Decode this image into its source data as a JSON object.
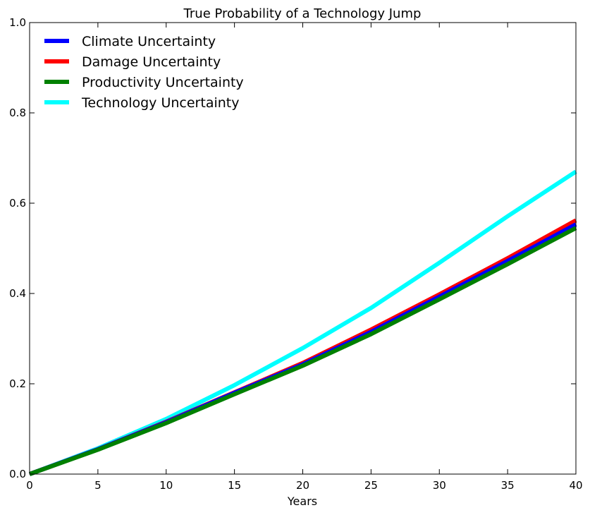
{
  "chart_data": {
    "type": "line",
    "title": "True Probability of a Technology Jump",
    "xlabel": "Years",
    "ylabel": "",
    "xlim": [
      0,
      40
    ],
    "ylim": [
      0,
      1.0
    ],
    "xticks": [
      0,
      5,
      10,
      15,
      20,
      25,
      30,
      35,
      40
    ],
    "xtick_labels": [
      "0",
      "5",
      "10",
      "15",
      "20",
      "25",
      "30",
      "35",
      "40"
    ],
    "yticks": [
      0,
      0.2,
      0.4,
      0.6,
      0.8,
      1.0
    ],
    "ytick_labels": [
      "0.0",
      "0.2",
      "0.4",
      "0.6",
      "0.8",
      "1.0"
    ],
    "grid": false,
    "legend_position": "top-left",
    "x": [
      0,
      5,
      10,
      15,
      20,
      25,
      30,
      35,
      40
    ],
    "series": [
      {
        "name": "Climate Uncertainty",
        "color": "#0000ff",
        "values": [
          0,
          0.055,
          0.115,
          0.18,
          0.243,
          0.315,
          0.393,
          0.472,
          0.553
        ]
      },
      {
        "name": "Damage Uncertainty",
        "color": "#ff0000",
        "values": [
          0,
          0.055,
          0.116,
          0.181,
          0.246,
          0.32,
          0.398,
          0.478,
          0.562
        ]
      },
      {
        "name": "Productivity Uncertainty",
        "color": "#008000",
        "values": [
          0,
          0.054,
          0.113,
          0.177,
          0.24,
          0.31,
          0.387,
          0.465,
          0.545
        ]
      },
      {
        "name": "Technology Uncertainty",
        "color": "#00ffff",
        "values": [
          0,
          0.057,
          0.122,
          0.197,
          0.279,
          0.368,
          0.468,
          0.571,
          0.67
        ]
      }
    ]
  }
}
